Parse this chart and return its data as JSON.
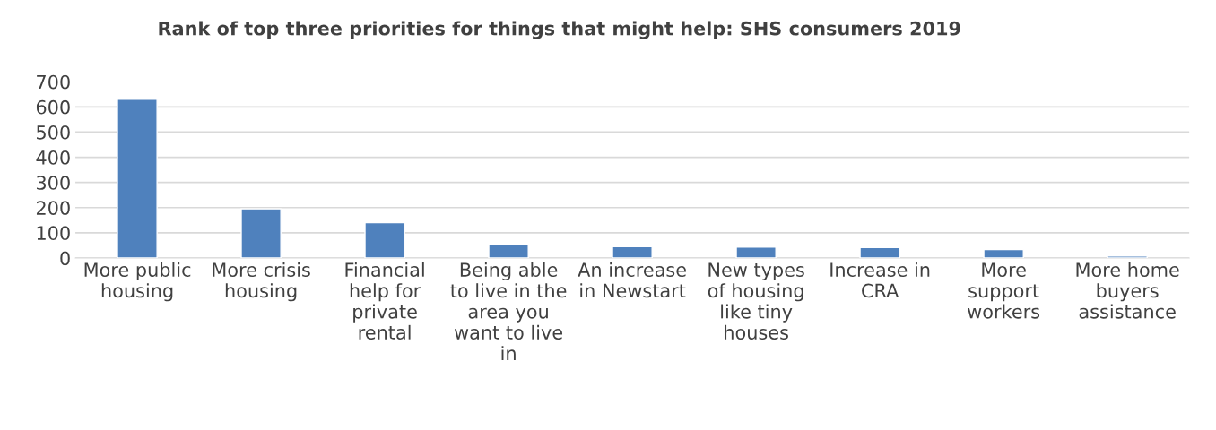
{
  "chart_data": {
    "type": "bar",
    "title": "Rank of top three priorities for things that might help: SHS consumers 2019",
    "categories": [
      "More public\nhousing",
      "More crisis\nhousing",
      "Financial\nhelp for\nprivate\nrental",
      "Being able\nto live in the\narea you\nwant to live\nin",
      "An increase\nin Newstart",
      "New types\nof housing\nlike tiny\nhouses",
      "Increase in\nCRA",
      "More\nsupport\nworkers",
      "More home\nbuyers\nassistance"
    ],
    "values": [
      630,
      195,
      140,
      55,
      45,
      43,
      42,
      34,
      8
    ],
    "color": "#4f81bd",
    "ylim": [
      0,
      700
    ],
    "yticks": [
      0,
      100,
      200,
      300,
      400,
      500,
      600,
      700
    ],
    "grid": "y",
    "legend": false
  }
}
